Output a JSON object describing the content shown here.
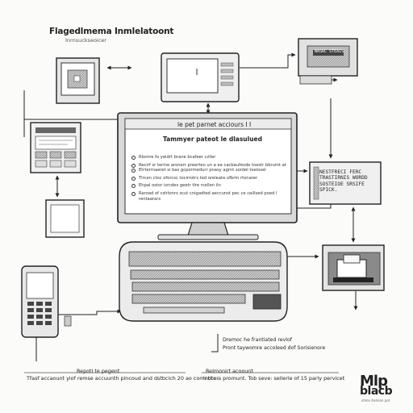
{
  "title": "Flagedlmema Inmlelatoont",
  "subtitle": "Inrnsuckseoicer",
  "top_right_label": "NASRC STEAIS",
  "screen": {
    "header": "le pet parnet acciours I I",
    "heading": "Tammyer pateot le dlasulued",
    "items": [
      "Rlomre fo yeidrt brane bcafeer czller",
      "Recirf sr terine aronerr preerteo un a ea cacbaufesde toestr bbrumt at",
      "Etrterrnaeret si bas gcpormedurr pnasy agrnt sordel toeiosel",
      "Tlrcen ctoc oforcsc tocirrotrs ted oreleate ofbrm rtonarer",
      "Ehpal ostor isrcdes geetr tlre rcellen iln",
      "Raroad of cshtonrs scut cnigadted aeccunst pec ce caillsed poed l rentaarars"
    ]
  },
  "right_panel": {
    "lines": [
      "NESTFRECI FERC",
      "TRASTIRNIS WORDD",
      "SOSTEIOE SRSIFE",
      "SPICK."
    ]
  },
  "notes": {
    "tr1": "Dremoc he frantiated revlof",
    "tr2": "Pront taywomre accoleed dof Sorisienore",
    "bl1": "Repotl te pegent",
    "bl2": "Tfasf accaount yiof remse accuunth pincoud and dstbcich 20 ao comntiter",
    "br1": "Relmonirt acoount",
    "br2": "inore a promunt. Tob seve: sellerle of 15 parly pervicet"
  },
  "logo": {
    "line1": "Mlp",
    "line2": "blacb",
    "line3": "shmn itemlon pot"
  }
}
